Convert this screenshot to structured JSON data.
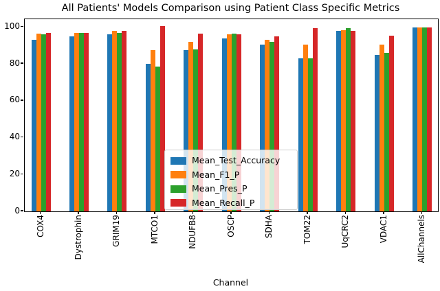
{
  "chart_data": {
    "type": "bar",
    "title": "All Patients' Models Comparison using Patient Class Specific Metrics",
    "xlabel": "Channel",
    "ylabel": "",
    "categories": [
      "COX4",
      "Dystrophin",
      "GRIM19",
      "MTCO1",
      "NDUFB8",
      "OSCP",
      "SDHA",
      "TOM22",
      "UqCRC2",
      "VDAC1",
      "AllChannels"
    ],
    "series": [
      {
        "name": "Mean_Test_Accuracy",
        "color": "#1f77b4",
        "values": [
          93,
          95,
          96,
          80,
          87.5,
          94,
          90.5,
          83,
          98,
          85,
          99.9
        ]
      },
      {
        "name": "Mean_F1_P",
        "color": "#ff7f0e",
        "values": [
          96.5,
          97,
          98,
          87.5,
          92,
          96,
          93,
          90.5,
          98.5,
          90.5,
          99.9
        ]
      },
      {
        "name": "Mean_Pres_P",
        "color": "#2ca02c",
        "values": [
          96,
          97,
          97,
          78.5,
          88,
          96.5,
          92,
          83,
          99.5,
          86,
          100
        ]
      },
      {
        "name": "Mean_Recall_P",
        "color": "#d62728",
        "values": [
          97,
          97,
          98,
          100.5,
          96.5,
          96,
          95,
          99.5,
          98,
          95.5,
          99.9
        ]
      }
    ],
    "yticks": [
      0,
      20,
      40,
      60,
      80,
      100
    ],
    "ylim": [
      0,
      104.3
    ],
    "grid": false,
    "legend_position": "lower center"
  }
}
